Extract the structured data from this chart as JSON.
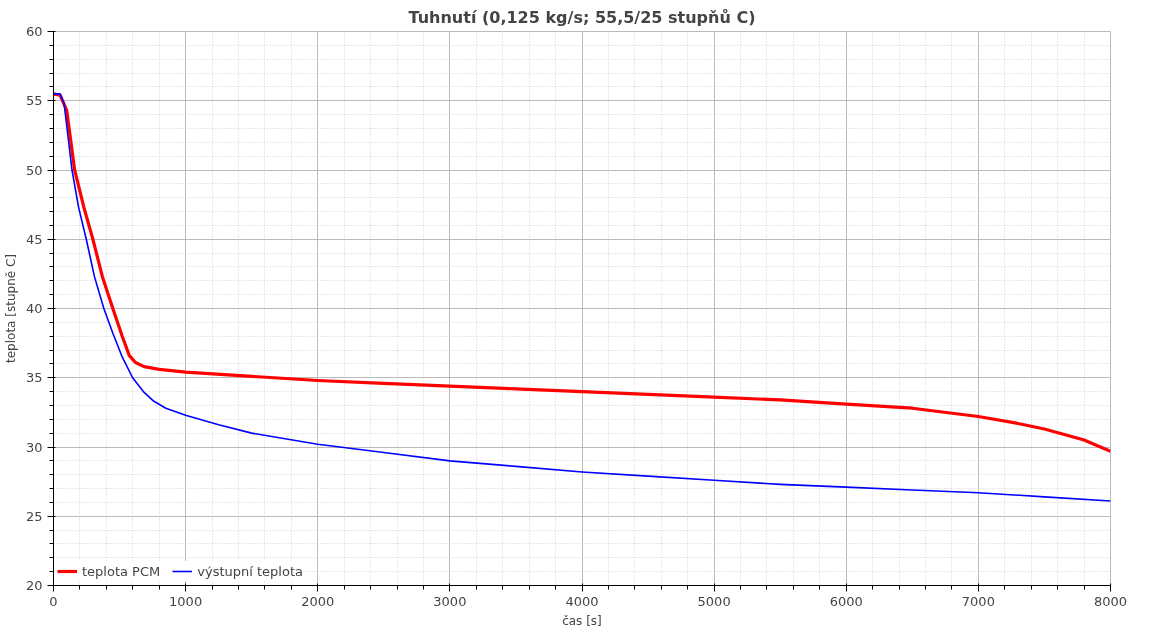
{
  "chart_data": {
    "type": "line",
    "title": "Tuhnutí (0,125 kg/s; 55,5/25 stupňů C)",
    "xlabel": "čas [s]",
    "ylabel": "teplota [stupně C]",
    "xlim": [
      0,
      8000
    ],
    "ylim": [
      20,
      60
    ],
    "xticks": [
      0,
      1000,
      2000,
      3000,
      4000,
      5000,
      6000,
      7000,
      8000
    ],
    "yticks": [
      20,
      25,
      30,
      35,
      40,
      45,
      50,
      55,
      60
    ],
    "grid": true,
    "legend": "bottom left",
    "marker": "none",
    "line_style": "solid",
    "series": [
      {
        "name": "teplota PCM",
        "color": "#ff0000",
        "x": [
          0,
          50,
          100,
          160,
          230,
          298,
          370,
          449,
          520,
          574,
          620,
          686,
          800,
          1000,
          1500,
          2000,
          2500,
          3000,
          3500,
          4000,
          4500,
          5000,
          5500,
          6000,
          6500,
          7000,
          7300,
          7500,
          7800,
          8000
        ],
        "values": [
          55.5,
          55.4,
          54.3,
          50,
          47.3,
          45,
          42.3,
          40,
          38,
          36.6,
          36.1,
          35.8,
          35.6,
          35.4,
          35.1,
          34.8,
          34.6,
          34.4,
          34.2,
          34,
          33.8,
          33.6,
          33.4,
          33.1,
          32.8,
          32.2,
          31.7,
          31.3,
          30.5,
          29.7
        ]
      },
      {
        "name": "výstupní teplota",
        "color": "#0000ff",
        "x": [
          0,
          50,
          80,
          140,
          190,
          248,
          310,
          381,
          450,
          520,
          599,
          680,
          760,
          850,
          1000,
          1250,
          1500,
          2000,
          2500,
          3000,
          3500,
          4000,
          4500,
          5000,
          5500,
          6000,
          6500,
          7000,
          7500,
          8000
        ],
        "values": [
          55.5,
          55.5,
          54.8,
          50,
          47.3,
          45,
          42.3,
          40,
          38.2,
          36.5,
          35,
          34,
          33.3,
          32.8,
          32.3,
          31.6,
          31,
          30.2,
          29.6,
          29,
          28.6,
          28.2,
          27.9,
          27.6,
          27.3,
          27.1,
          26.9,
          26.7,
          26.4,
          26.1
        ]
      }
    ]
  }
}
